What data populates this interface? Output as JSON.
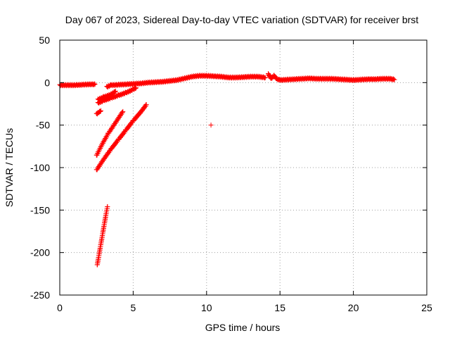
{
  "chart_data": {
    "type": "scatter",
    "title": "Day 067 of 2023, Sidereal Day-to-day VTEC variation (SDTVAR) for receiver brst",
    "xlabel": "GPS time / hours",
    "ylabel": "SDTVAR / TECUs",
    "xlim": [
      0,
      25
    ],
    "ylim": [
      -250,
      50
    ],
    "xticks": [
      0,
      5,
      10,
      15,
      20,
      25
    ],
    "yticks": [
      -250,
      -200,
      -150,
      -100,
      -50,
      0,
      50
    ],
    "grid": true,
    "legend": "none",
    "marker": "plus",
    "marker_color": "#ff0000",
    "series": [
      {
        "segments": [
          {
            "x": [
              0.0,
              0.5,
              1.0,
              1.5,
              2.0,
              2.4
            ],
            "y": [
              -3,
              -3,
              -3,
              -2.5,
              -2,
              -2
            ]
          },
          {
            "x": [
              3.2,
              3.5,
              4.0,
              4.5,
              5.0,
              5.5,
              6.0,
              6.5,
              7.0,
              7.5,
              8.0,
              8.5,
              9.0,
              9.5,
              10.0,
              10.5,
              11.0,
              11.5,
              12.0,
              12.5,
              13.0,
              13.5,
              14.0
            ],
            "y": [
              -5,
              -3,
              -2.5,
              -2,
              -1.5,
              -1,
              0,
              0.5,
              1,
              2,
              3,
              5,
              7,
              8,
              8,
              7.5,
              7,
              6,
              6,
              6.5,
              7,
              7,
              6
            ]
          },
          {
            "x": [
              14.2,
              14.4,
              14.6,
              14.8,
              15.0,
              15.5,
              16.0,
              16.5,
              17.0,
              17.5,
              18.0,
              18.5,
              19.0,
              19.5,
              20.0,
              20.5,
              21.0,
              21.5,
              22.0,
              22.5,
              22.8
            ],
            "y": [
              10,
              5,
              8,
              4,
              3,
              3.5,
              4,
              4.5,
              5,
              4.5,
              4.5,
              4.5,
              4,
              3.5,
              3,
              3.5,
              4,
              4,
              4.5,
              4.5,
              3.5
            ]
          },
          {
            "x": [
              2.6,
              3.0,
              3.5,
              3.8
            ],
            "y": [
              -20,
              -17,
              -14,
              -10
            ]
          },
          {
            "x": [
              2.6,
              3.0,
              3.5,
              4.0,
              4.5,
              5.0,
              5.2
            ],
            "y": [
              -24,
              -21,
              -18,
              -15,
              -12,
              -8,
              -6
            ]
          },
          {
            "x": [
              2.5,
              2.8
            ],
            "y": [
              -37,
              -33
            ]
          },
          {
            "x": [
              2.5,
              2.9,
              3.3,
              3.8,
              4.3
            ],
            "y": [
              -86,
              -72,
              -60,
              -47,
              -34
            ]
          },
          {
            "x": [
              2.5,
              3.0,
              3.5,
              4.0,
              4.5,
              5.0,
              5.5,
              5.9
            ],
            "y": [
              -103,
              -90,
              -78,
              -67,
              -56,
              -45,
              -35,
              -26
            ]
          },
          {
            "x": [
              2.55,
              2.7,
              2.85,
              3.0,
              3.15,
              3.25
            ],
            "y": [
              -215,
              -200,
              -185,
              -170,
              -155,
              -146
            ]
          },
          {
            "x": [
              10.3
            ],
            "y": [
              -50
            ]
          }
        ]
      }
    ]
  }
}
